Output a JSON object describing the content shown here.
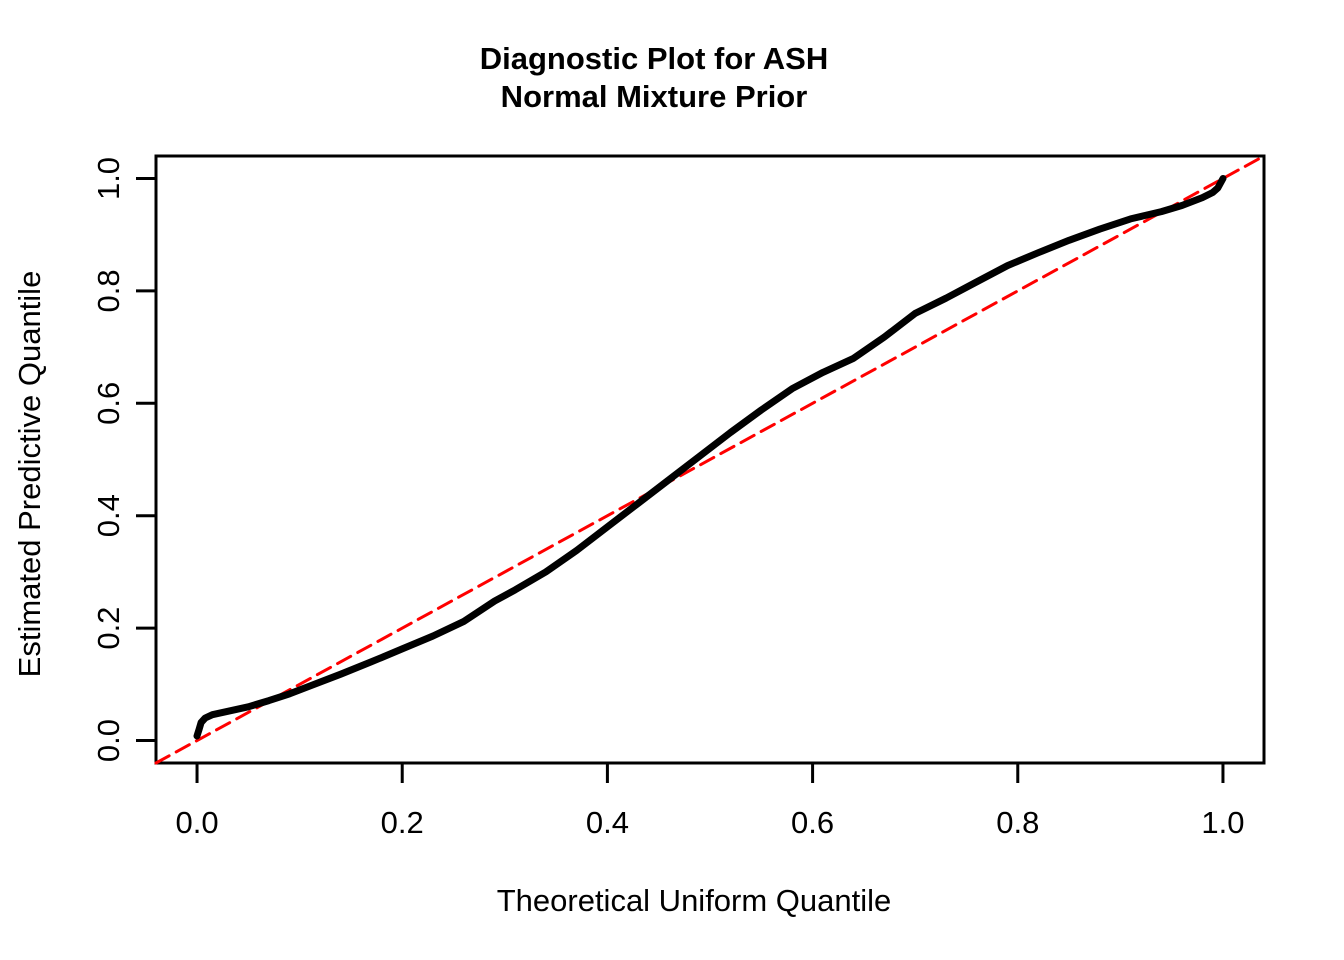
{
  "figure": {
    "title_line1": "Diagnostic Plot for ASH",
    "title_line2": "Normal Mixture Prior",
    "xlabel": "Theoretical Uniform Quantile",
    "ylabel": "Estimated Predictive Quantile"
  },
  "chart_data": {
    "type": "line",
    "title": "Diagnostic Plot for ASH\nNormal Mixture Prior",
    "xlabel": "Theoretical Uniform Quantile",
    "ylabel": "Estimated Predictive Quantile",
    "xlim": [
      -0.04,
      1.04
    ],
    "ylim": [
      -0.04,
      1.04
    ],
    "grid": false,
    "legend_position": "none",
    "background_color": "#FFFFFF",
    "axis_color": "#000000",
    "x_ticks": {
      "values": [
        0.0,
        0.2,
        0.4,
        0.6,
        0.8,
        1.0
      ],
      "labels": [
        "0.0",
        "0.2",
        "0.4",
        "0.6",
        "0.8",
        "1.0"
      ]
    },
    "y_ticks": {
      "values": [
        0.0,
        0.2,
        0.4,
        0.6,
        0.8,
        1.0
      ],
      "labels": [
        "0.0",
        "0.2",
        "0.4",
        "0.6",
        "0.8",
        "1.0"
      ]
    },
    "series": [
      {
        "name": "estimated-predictive-quantile-curve",
        "color": "#000000",
        "stroke_width": 7,
        "dash": null,
        "points": [
          [
            0.0,
            0.008
          ],
          [
            0.002,
            0.02
          ],
          [
            0.004,
            0.032
          ],
          [
            0.008,
            0.04
          ],
          [
            0.015,
            0.046
          ],
          [
            0.03,
            0.052
          ],
          [
            0.05,
            0.06
          ],
          [
            0.07,
            0.071
          ],
          [
            0.09,
            0.083
          ],
          [
            0.11,
            0.097
          ],
          [
            0.14,
            0.118
          ],
          [
            0.17,
            0.14
          ],
          [
            0.2,
            0.163
          ],
          [
            0.23,
            0.186
          ],
          [
            0.26,
            0.212
          ],
          [
            0.29,
            0.248
          ],
          [
            0.31,
            0.268
          ],
          [
            0.34,
            0.3
          ],
          [
            0.37,
            0.338
          ],
          [
            0.4,
            0.38
          ],
          [
            0.43,
            0.422
          ],
          [
            0.46,
            0.464
          ],
          [
            0.49,
            0.506
          ],
          [
            0.52,
            0.548
          ],
          [
            0.55,
            0.588
          ],
          [
            0.58,
            0.626
          ],
          [
            0.61,
            0.655
          ],
          [
            0.64,
            0.68
          ],
          [
            0.67,
            0.718
          ],
          [
            0.7,
            0.76
          ],
          [
            0.73,
            0.787
          ],
          [
            0.76,
            0.816
          ],
          [
            0.79,
            0.845
          ],
          [
            0.82,
            0.868
          ],
          [
            0.85,
            0.89
          ],
          [
            0.88,
            0.91
          ],
          [
            0.91,
            0.928
          ],
          [
            0.94,
            0.941
          ],
          [
            0.96,
            0.952
          ],
          [
            0.98,
            0.966
          ],
          [
            0.99,
            0.975
          ],
          [
            0.995,
            0.983
          ],
          [
            1.0,
            1.0
          ]
        ]
      },
      {
        "name": "identity-reference-line",
        "color": "#FF0000",
        "stroke_width": 3,
        "dash": [
          15,
          8
        ],
        "points": [
          [
            -0.04,
            -0.04
          ],
          [
            1.04,
            1.04
          ]
        ]
      }
    ]
  }
}
